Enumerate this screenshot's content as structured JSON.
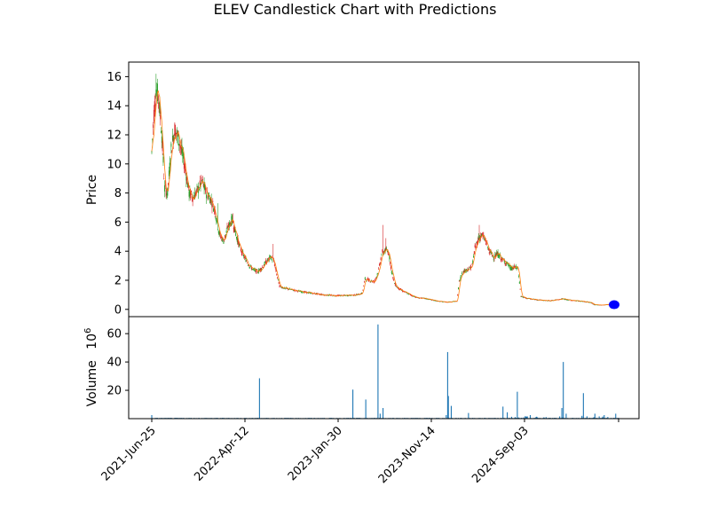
{
  "chart_data": [
    {
      "type": "candlestick",
      "title": "ELEV Candlestick Chart with Predictions",
      "ylabel": "Price",
      "ylim": [
        -0.5,
        17
      ],
      "yticks": [
        0,
        2,
        4,
        6,
        8,
        10,
        12,
        14,
        16
      ],
      "xticks": [
        "2021-Jun-25",
        "2022-Apr-12",
        "2023-Jan-30",
        "2023-Nov-14",
        "2024-Sep-03",
        ""
      ],
      "colors": {
        "up": "#2ca02c",
        "down": "#d62728",
        "wick": "#7f7f7f",
        "line": "#ff7f0e",
        "prediction": "#0000ff"
      },
      "price_path": [
        [
          0,
          10.8
        ],
        [
          3,
          13.5
        ],
        [
          6,
          15.2
        ],
        [
          10,
          14.4
        ],
        [
          14,
          12.0
        ],
        [
          18,
          8.3
        ],
        [
          22,
          8.0
        ],
        [
          27,
          11.0
        ],
        [
          32,
          12.4
        ],
        [
          37,
          11.8
        ],
        [
          42,
          10.8
        ],
        [
          47,
          9.6
        ],
        [
          52,
          8.0
        ],
        [
          58,
          7.7
        ],
        [
          64,
          8.2
        ],
        [
          70,
          8.8
        ],
        [
          76,
          8.0
        ],
        [
          82,
          7.6
        ],
        [
          88,
          6.8
        ],
        [
          94,
          5.2
        ],
        [
          100,
          4.7
        ],
        [
          106,
          5.6
        ],
        [
          112,
          6.2
        ],
        [
          118,
          5.0
        ],
        [
          124,
          4.1
        ],
        [
          130,
          3.5
        ],
        [
          136,
          3.0
        ],
        [
          142,
          2.7
        ],
        [
          148,
          2.6
        ],
        [
          154,
          2.9
        ],
        [
          160,
          3.3
        ],
        [
          166,
          3.6
        ],
        [
          170,
          3.3
        ],
        [
          174,
          2.4
        ],
        [
          178,
          1.6
        ],
        [
          185,
          1.45
        ],
        [
          195,
          1.35
        ],
        [
          210,
          1.2
        ],
        [
          225,
          1.1
        ],
        [
          240,
          1.0
        ],
        [
          255,
          0.95
        ],
        [
          270,
          0.95
        ],
        [
          285,
          1.0
        ],
        [
          293,
          1.1
        ],
        [
          297,
          2.1
        ],
        [
          303,
          2.0
        ],
        [
          310,
          1.9
        ],
        [
          316,
          2.7
        ],
        [
          320,
          3.8
        ],
        [
          326,
          4.1
        ],
        [
          330,
          3.9
        ],
        [
          334,
          2.6
        ],
        [
          338,
          1.8
        ],
        [
          342,
          1.5
        ],
        [
          350,
          1.25
        ],
        [
          360,
          1.0
        ],
        [
          370,
          0.8
        ],
        [
          380,
          0.75
        ],
        [
          390,
          0.65
        ],
        [
          400,
          0.55
        ],
        [
          412,
          0.5
        ],
        [
          420,
          0.55
        ],
        [
          425,
          0.55
        ],
        [
          428,
          1.9
        ],
        [
          432,
          2.5
        ],
        [
          437,
          2.7
        ],
        [
          442,
          2.8
        ],
        [
          446,
          3.0
        ],
        [
          450,
          4.2
        ],
        [
          455,
          4.9
        ],
        [
          460,
          5.1
        ],
        [
          465,
          4.7
        ],
        [
          470,
          4.0
        ],
        [
          476,
          3.6
        ],
        [
          482,
          3.8
        ],
        [
          488,
          3.4
        ],
        [
          494,
          3.2
        ],
        [
          500,
          2.8
        ],
        [
          506,
          2.9
        ],
        [
          510,
          2.8
        ],
        [
          514,
          0.9
        ],
        [
          520,
          0.78
        ],
        [
          530,
          0.7
        ],
        [
          540,
          0.65
        ],
        [
          550,
          0.6
        ],
        [
          560,
          0.62
        ],
        [
          565,
          0.68
        ],
        [
          572,
          0.72
        ],
        [
          580,
          0.65
        ],
        [
          590,
          0.6
        ],
        [
          600,
          0.55
        ],
        [
          606,
          0.52
        ],
        [
          612,
          0.45
        ],
        [
          616,
          0.32
        ],
        [
          625,
          0.3
        ],
        [
          635,
          0.33
        ],
        [
          645,
          0.3
        ],
        [
          650,
          0.28
        ]
      ],
      "spikes": [
        [
          6,
          16.2
        ],
        [
          322,
          5.8
        ],
        [
          326,
          4.9
        ],
        [
          169,
          4.5
        ],
        [
          456,
          5.8
        ],
        [
          113,
          6.6
        ],
        [
          92,
          7.3
        ]
      ],
      "predictions": [
        0.32
      ]
    },
    {
      "type": "bar",
      "ylabel": "Volume",
      "y_multiplier": "10^6",
      "ylim": [
        0,
        72
      ],
      "yticks": [
        20,
        40,
        60
      ],
      "baseline": 0.4,
      "spikes": [
        [
          0,
          2.5
        ],
        [
          150,
          28.5
        ],
        [
          280,
          20.5
        ],
        [
          298,
          13.5
        ],
        [
          315,
          66.5
        ],
        [
          318,
          3.5
        ],
        [
          322,
          7.5
        ],
        [
          410,
          2.5
        ],
        [
          412,
          47
        ],
        [
          413,
          16
        ],
        [
          417,
          9
        ],
        [
          441,
          4
        ],
        [
          489,
          8.5
        ],
        [
          495,
          4.5
        ],
        [
          509,
          19
        ],
        [
          527,
          2.5
        ],
        [
          571,
          7.5
        ],
        [
          573,
          40
        ],
        [
          577,
          3.5
        ],
        [
          601,
          18
        ],
        [
          617,
          3.5
        ],
        [
          630,
          2.5
        ],
        [
          646,
          3.5
        ]
      ]
    }
  ]
}
